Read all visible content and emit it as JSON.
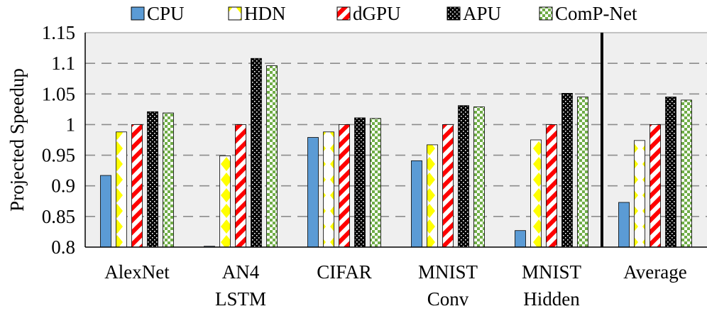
{
  "chart_data": {
    "type": "bar",
    "ylabel": "Projected Speedup",
    "ylim": [
      0.8,
      1.15
    ],
    "yticks": [
      "0.8",
      "0.85",
      "0.9",
      "0.95",
      "1",
      "1.05",
      "1.1",
      "1.15"
    ],
    "grid": true,
    "legend_position": "top",
    "categories": [
      [
        "AlexNet"
      ],
      [
        "AN4",
        "LSTM"
      ],
      [
        "CIFAR"
      ],
      [
        "MNIST",
        "Conv"
      ],
      [
        "MNIST",
        "Hidden"
      ],
      [
        "Average"
      ]
    ],
    "separator_before_category": 5,
    "series": [
      {
        "name": "CPU",
        "color": "#5b9bd5",
        "pattern": "solid",
        "values": [
          0.917,
          0.8,
          0.979,
          0.941,
          0.827,
          0.873
        ]
      },
      {
        "name": "HDN",
        "color": "#ffff00",
        "pattern": "diamonds",
        "values": [
          0.988,
          0.949,
          0.988,
          0.967,
          0.975,
          0.974
        ]
      },
      {
        "name": "dGPU",
        "color": "#ff0000",
        "pattern": "diagonal-stripes",
        "values": [
          1.0,
          1.0,
          1.0,
          1.0,
          1.0,
          1.0
        ]
      },
      {
        "name": "APU",
        "color": "#000000",
        "pattern": "dots",
        "values": [
          1.021,
          1.108,
          1.011,
          1.031,
          1.051,
          1.045
        ]
      },
      {
        "name": "ComP-Net",
        "color": "#70ad47",
        "pattern": "checker",
        "values": [
          1.019,
          1.096,
          1.01,
          1.029,
          1.045,
          1.04
        ]
      }
    ]
  }
}
